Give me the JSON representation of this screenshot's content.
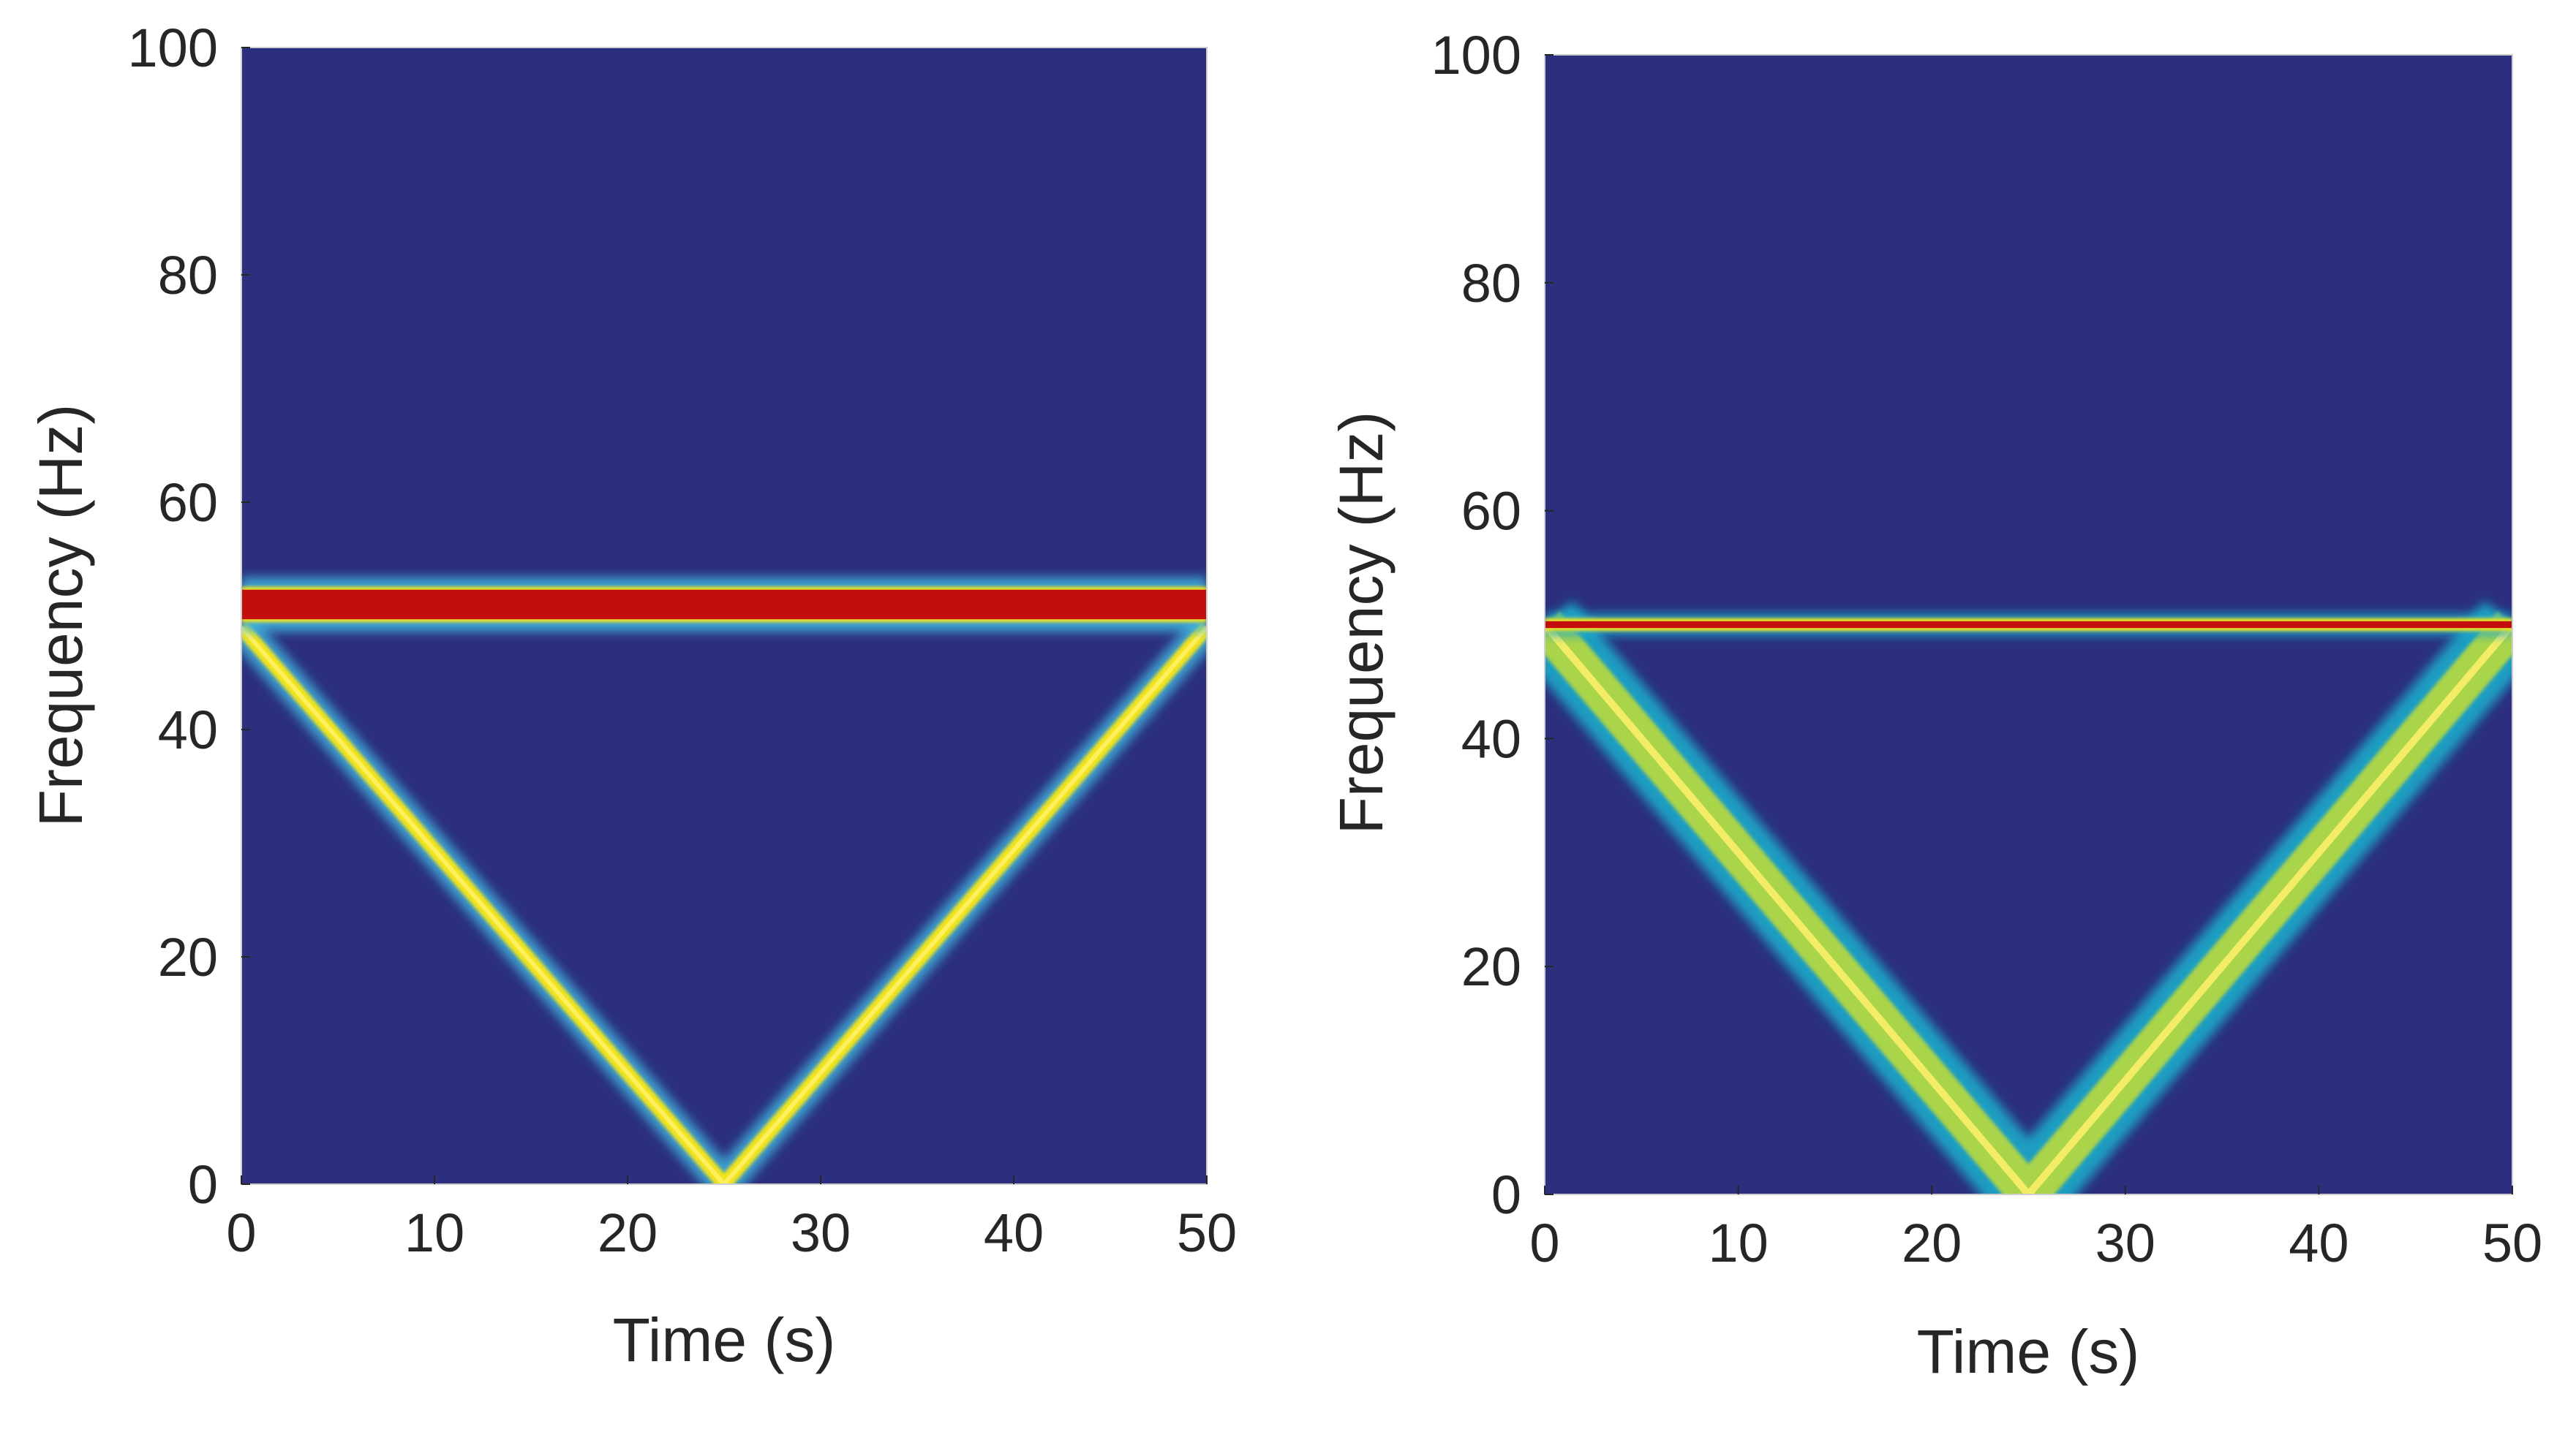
{
  "chart_data": [
    {
      "type": "heatmap",
      "title": "",
      "xlabel": "Time (s)",
      "ylabel": "Frequency (Hz)",
      "xlim": [
        0,
        50
      ],
      "ylim": [
        0,
        100
      ],
      "xticks": [
        0,
        10,
        20,
        30,
        40,
        50
      ],
      "yticks": [
        0,
        20,
        40,
        60,
        80,
        100
      ],
      "grid": false,
      "background_color": "#2b2f7e",
      "features": {
        "constant_component": {
          "frequency_hz": 51,
          "band_hz": 2.6,
          "color": "#c40d0d",
          "edge_color": "#f2e41c"
        },
        "chirp_component": {
          "points": [
            [
              0,
              49
            ],
            [
              25,
              0
            ],
            [
              50,
              49
            ]
          ],
          "color": "#f2e41c",
          "edge_color": "#3fb7e0"
        },
        "edge_effects": {
          "start_s": 0,
          "end_s": 50,
          "color": "#3fb7e0"
        }
      }
    },
    {
      "type": "heatmap",
      "title": "",
      "xlabel": "Time (s)",
      "ylabel": "Frequency (Hz)",
      "xlim": [
        0,
        50
      ],
      "ylim": [
        0,
        100
      ],
      "xticks": [
        0,
        10,
        20,
        30,
        40,
        50
      ],
      "yticks": [
        0,
        20,
        40,
        60,
        80,
        100
      ],
      "grid": false,
      "background_color": "#2b2f7e",
      "features": {
        "constant_component": {
          "frequency_hz": 50,
          "band_hz": 0.6,
          "color": "#c40d0d",
          "edge_color": "#f2e41c"
        },
        "chirp_component": {
          "points": [
            [
              0,
              50
            ],
            [
              25,
              0
            ],
            [
              50,
              50
            ]
          ],
          "color": "#aad44a",
          "edge_color": "#1ca9c9"
        },
        "edge_effects": {
          "start_s": 0,
          "end_s": 50,
          "color": "#1ca9c9"
        }
      }
    }
  ]
}
